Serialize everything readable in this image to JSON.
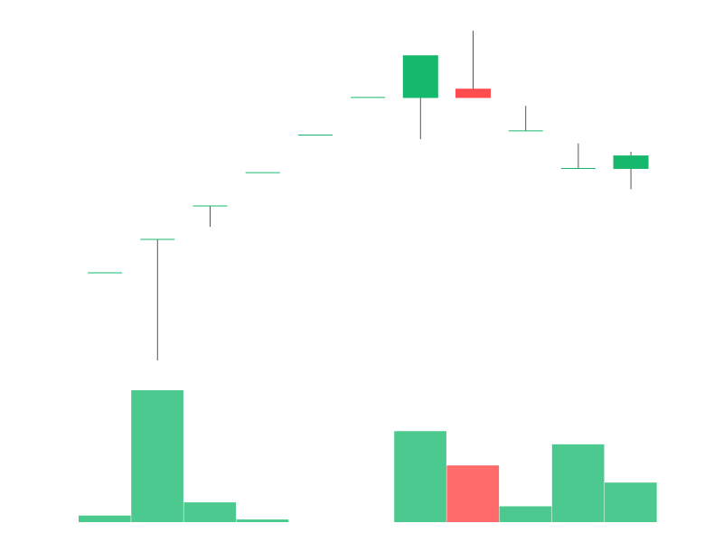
{
  "chart_data": {
    "type": "candlestick",
    "title": "",
    "xlabel": "",
    "ylabel": "",
    "grid": false,
    "legend": "none",
    "colors": {
      "up": "#16b86c",
      "down": "#ff4d4f",
      "wick": "#555555",
      "volume_up": "#4cc98f",
      "volume_down": "#ff6b6b"
    },
    "price_range": [
      0,
      100
    ],
    "volume_range": [
      0,
      100
    ],
    "candles": [
      {
        "open": 61,
        "high": 61,
        "low": 61,
        "close": 61,
        "volume": 5
      },
      {
        "open": 69,
        "high": 69,
        "low": 40,
        "close": 69,
        "volume": 100
      },
      {
        "open": 77,
        "high": 77,
        "low": 72,
        "close": 77,
        "volume": 15
      },
      {
        "open": 85,
        "high": 85,
        "low": 85,
        "close": 85,
        "volume": 2
      },
      {
        "open": 94,
        "high": 94,
        "low": 94,
        "close": 94,
        "volume": null
      },
      {
        "open": 103,
        "high": 103,
        "low": 103,
        "close": 103,
        "volume": null
      },
      {
        "open": 103,
        "high": 113,
        "low": 93,
        "close": 113,
        "volume": 69
      },
      {
        "open": 105,
        "high": 119,
        "low": 103,
        "close": 103,
        "volume": 43
      },
      {
        "open": 95,
        "high": 101,
        "low": 95,
        "close": 95,
        "volume": 12
      },
      {
        "open": 86,
        "high": 92,
        "low": 86,
        "close": 86,
        "volume": 59
      },
      {
        "open": 86,
        "high": 90,
        "low": 81,
        "close": 89,
        "volume": 30
      }
    ]
  }
}
